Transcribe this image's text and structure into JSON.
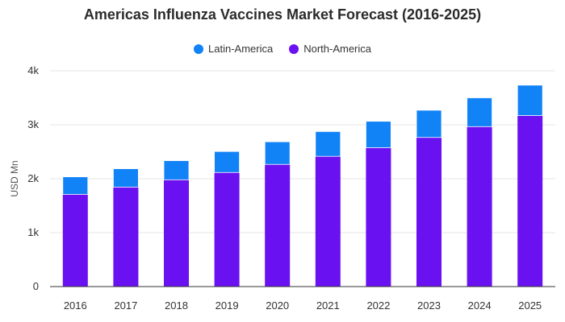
{
  "chart_data": {
    "type": "bar",
    "stacked": true,
    "title": "Americas Influenza Vaccines Market Forecast (2016-2025)",
    "xlabel": "",
    "ylabel": "USD Mn",
    "categories": [
      "2016",
      "2017",
      "2018",
      "2019",
      "2020",
      "2021",
      "2022",
      "2023",
      "2024",
      "2025"
    ],
    "series": [
      {
        "name": "North-America",
        "color": "#6a11f2",
        "values": [
          1710,
          1845,
          1980,
          2115,
          2265,
          2415,
          2575,
          2765,
          2965,
          3170
        ]
      },
      {
        "name": "Latin-America",
        "color": "#1283f7",
        "values": [
          325,
          340,
          355,
          390,
          420,
          460,
          490,
          505,
          535,
          565
        ]
      }
    ],
    "ylim": [
      0,
      4000
    ],
    "yticks": [
      0,
      1000,
      2000,
      3000,
      4000
    ],
    "ytick_labels": [
      "0",
      "1k",
      "2k",
      "3k",
      "4k"
    ],
    "legend": {
      "position": "top",
      "order": [
        "Latin-America",
        "North-America"
      ]
    },
    "grid": true
  }
}
